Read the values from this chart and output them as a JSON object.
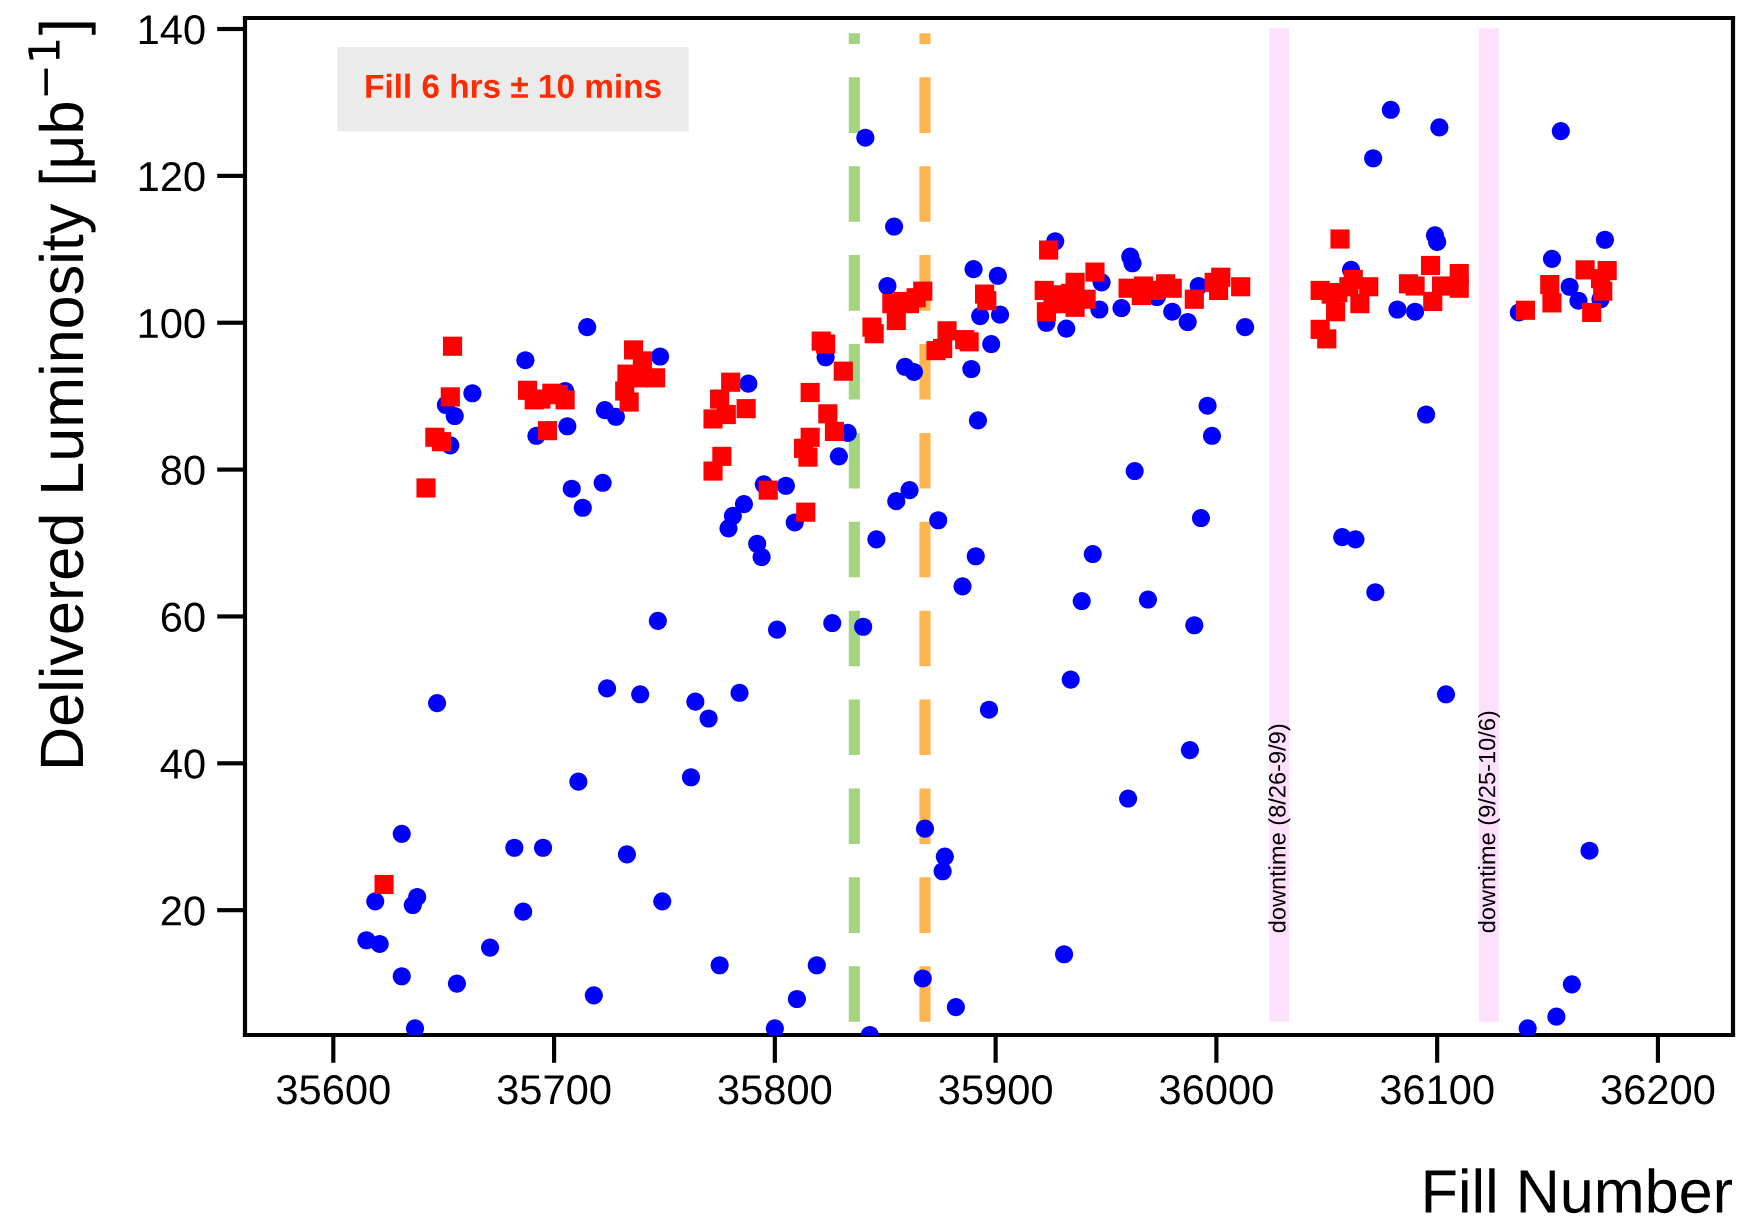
{
  "chart_data": {
    "type": "scatter",
    "xlabel": "Fill Number",
    "ylabel": "Delivered Luminosity [μb$^{−1}$]",
    "annotations": [
      "Fill 6 hrs ± 10 mins"
    ],
    "xlim": [
      35560,
      36234
    ],
    "ylim": [
      3,
      141.5
    ],
    "xticks": [
      35600,
      35700,
      35800,
      35900,
      36000,
      36100,
      36200
    ],
    "yticks": [
      20,
      40,
      60,
      80,
      100,
      120,
      140
    ],
    "grid": false,
    "legend": false,
    "ref_lines": [
      {
        "axis": "x",
        "value": 35836,
        "label": null,
        "color": "#a3d47f",
        "line_style": "dashed"
      },
      {
        "axis": "x",
        "value": 35868,
        "label": null,
        "color": "#ffb54f",
        "line_style": "dashed"
      }
    ],
    "bands": [
      {
        "axis": "x",
        "from": 36024,
        "to": 36033,
        "label": "downtime (8/26-9/9)",
        "color": "#ffe0fc"
      },
      {
        "axis": "x",
        "from": 36119,
        "to": 36128,
        "label": "downtime (9/25-10/6)",
        "color": "#ffe0fc"
      }
    ],
    "series": [
      {
        "color": "#0000ff",
        "marker": "circle",
        "x": [
          35615,
          35619,
          35621,
          35631,
          35631,
          35636,
          35638,
          35637,
          35647,
          35651,
          35653,
          35655,
          35656,
          35663,
          35671,
          35682,
          35686,
          35687,
          35692,
          35695,
          35705,
          35706,
          35708,
          35711,
          35713,
          35715,
          35718,
          35722,
          35723,
          35724,
          35728,
          35733,
          35739,
          35747,
          35748,
          35749,
          35762,
          35764,
          35770,
          35775,
          35779,
          35781,
          35784,
          35786,
          35788,
          35792,
          35794,
          35795,
          35800,
          35801,
          35805,
          35809,
          35810,
          35819,
          35823,
          35826,
          35829,
          35833,
          35840,
          35841,
          35843,
          35846,
          35851,
          35854,
          35855,
          35859,
          35861,
          35863,
          35867,
          35868,
          35874,
          35876,
          35877,
          35882,
          35885,
          35889,
          35890,
          35891,
          35892,
          35893,
          35897,
          35898,
          35901,
          35902,
          35923,
          35927,
          35931,
          35932,
          35934,
          35939,
          35944,
          35947,
          35948,
          35957,
          35960,
          35961,
          35962,
          35963,
          35969,
          35973,
          35980,
          35987,
          35988,
          35990,
          35992,
          35993,
          35996,
          35998,
          36013,
          36057,
          36061,
          36063,
          36071,
          36072,
          36079,
          36082,
          36090,
          36095,
          36099,
          36100,
          36101,
          36104,
          36137,
          36141,
          36152,
          36154,
          36156,
          36160,
          36161,
          36164,
          36169,
          36174,
          36176
        ],
        "values": [
          15.9,
          21.2,
          15.4,
          30.4,
          11.0,
          20.7,
          21.8,
          3.9,
          48.2,
          88.8,
          83.3,
          87.3,
          10.0,
          90.4,
          14.9,
          28.5,
          19.8,
          94.9,
          84.6,
          28.5,
          90.7,
          85.9,
          77.4,
          37.5,
          74.8,
          99.4,
          8.4,
          78.2,
          88.1,
          50.2,
          87.2,
          27.6,
          49.4,
          59.4,
          95.4,
          21.2,
          38.1,
          48.4,
          46.1,
          12.5,
          72.0,
          73.7,
          49.6,
          75.3,
          91.7,
          69.9,
          68.1,
          78.0,
          3.9,
          58.2,
          77.8,
          72.8,
          7.9,
          12.5,
          95.3,
          59.1,
          81.8,
          85.0,
          58.6,
          125.2,
          3.0,
          70.5,
          105.0,
          113.1,
          75.7,
          94.0,
          77.2,
          93.3,
          10.7,
          31.1,
          73.1,
          25.3,
          27.3,
          6.8,
          64.1,
          93.7,
          107.3,
          68.2,
          86.7,
          100.9,
          47.3,
          97.1,
          106.4,
          101.1,
          100.0,
          111.1,
          14.0,
          99.2,
          51.4,
          62.1,
          68.5,
          101.8,
          105.5,
          102.0,
          35.2,
          109.0,
          108.1,
          79.8,
          62.3,
          103.5,
          101.5,
          100.1,
          41.8,
          58.8,
          105.0,
          73.4,
          88.7,
          84.6,
          99.4,
          70.8,
          107.2,
          70.5,
          122.4,
          63.3,
          129.0,
          101.8,
          101.5,
          87.5,
          111.9,
          111.0,
          126.6,
          49.4,
          101.4,
          3.9,
          108.7,
          5.5,
          126.1,
          104.9,
          9.9,
          103.0,
          28.1,
          103.2,
          111.3
        ]
      },
      {
        "color": "#ff0000",
        "marker": "square",
        "x": [
          35623,
          35642,
          35646,
          35649,
          35653,
          35654,
          35688,
          35691,
          35694,
          35697,
          35699,
          35702,
          35705,
          35732,
          35733,
          35734,
          35736,
          35738,
          35740,
          35746,
          35772,
          35772,
          35775,
          35776,
          35778,
          35780,
          35787,
          35797,
          35814,
          35813,
          35815,
          35816,
          35816,
          35821,
          35823,
          35824,
          35827,
          35831,
          35844,
          35845,
          35853,
          35855,
          35858,
          35861,
          35864,
          35867,
          35873,
          35876,
          35878,
          35886,
          35888,
          35895,
          35896,
          35922,
          35923,
          35924,
          35926,
          35931,
          35934,
          35936,
          35936,
          35941,
          35945,
          35960,
          35966,
          35967,
          35972,
          35977,
          35980,
          35990,
          35999,
          36001,
          36002,
          36011,
          36047,
          36047,
          36050,
          36052,
          36054,
          36055,
          36056,
          36060,
          36062,
          36065,
          36069,
          36087,
          36090,
          36097,
          36098,
          36102,
          36110,
          36110,
          36140,
          36151,
          36152,
          36167,
          36170,
          36174,
          36177,
          36175
        ],
        "values": [
          23.5,
          77.5,
          84.4,
          83.8,
          89.9,
          96.8,
          90.8,
          89.5,
          89.6,
          85.3,
          90.4,
          90.2,
          89.5,
          90.7,
          93.0,
          89.2,
          96.3,
          92.5,
          94.8,
          92.5,
          86.9,
          79.8,
          89.6,
          81.8,
          87.5,
          91.9,
          88.3,
          77.2,
          74.2,
          82.9,
          81.7,
          84.4,
          90.5,
          97.5,
          97.1,
          87.6,
          85.2,
          93.4,
          99.4,
          98.5,
          102.6,
          100.3,
          102.9,
          102.6,
          103.4,
          104.3,
          96.2,
          96.5,
          98.9,
          97.7,
          97.4,
          103.9,
          103.0,
          104.4,
          101.5,
          109.9,
          103.8,
          102.6,
          104.0,
          105.5,
          102.1,
          103.2,
          106.9,
          104.7,
          103.7,
          105.0,
          104.4,
          105.3,
          104.7,
          103.2,
          105.5,
          104.4,
          106.2,
          104.9,
          104.4,
          99.1,
          97.8,
          103.9,
          101.5,
          104.1,
          111.4,
          104.9,
          105.9,
          102.6,
          104.9,
          105.3,
          105.0,
          107.8,
          102.9,
          105.0,
          104.7,
          106.7,
          101.7,
          105.2,
          102.7,
          107.2,
          101.4,
          106.0,
          107.1,
          104.3
        ]
      }
    ]
  }
}
